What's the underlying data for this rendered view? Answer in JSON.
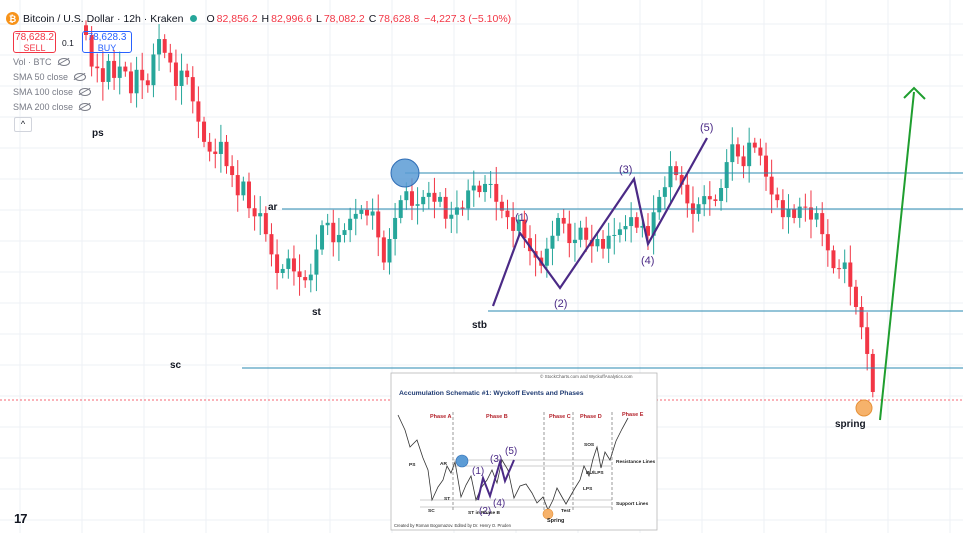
{
  "header": {
    "symbol_title": "Bitcoin / U.S. Dollar · 12h · Kraken",
    "open_label": "O",
    "open": "82,856.2",
    "high_label": "H",
    "high": "82,996.6",
    "low_label": "L",
    "low": "78,082.2",
    "close_label": "C",
    "close": "78,628.8",
    "change": "−4,227.3 (−5.10%)"
  },
  "trade": {
    "sell_price": "78,628.2",
    "sell_label": "SELL",
    "spread": "0.1",
    "buy_price": "78,628.3",
    "buy_label": "BUY"
  },
  "indicators": [
    "Vol · BTC",
    "SMA 50 close",
    "SMA 100 close",
    "SMA 200 close"
  ],
  "collapse_glyph": "^",
  "logo_text": "17",
  "icons": {
    "btc": "bitcoin-icon",
    "status": "market-status-dot",
    "eye": "eye-off-icon"
  },
  "colors": {
    "bull": "#26a69a",
    "bear": "#f23645",
    "level_lines": "#2a8ab0",
    "wyckoff_path": "#4b2a86",
    "projection": "#1f9e2f",
    "ar_circle": "#5b9bd5",
    "spring_circle": "#f6b26b"
  },
  "chart_data": {
    "type": "candlestick",
    "title": "Bitcoin / U.S. Dollar · 12h · Kraken",
    "series_trend": [
      100.0,
      96.1,
      95.9,
      94.2,
      96.8,
      94.7,
      96.1,
      95.5,
      92.8,
      95.7,
      94.4,
      93.8,
      97.6,
      99.5,
      97.8,
      96.6,
      93.7,
      95.6,
      94.8,
      91.8,
      89.3,
      86.8,
      85.6,
      85.3,
      86.8,
      83.8,
      82.7,
      80.2,
      81.9,
      78.6,
      77.6,
      78.0,
      75.4,
      72.9,
      70.6,
      71.1,
      72.4,
      70.8,
      70.1,
      69.7,
      70.4,
      73.5,
      76.5,
      76.8,
      74.4,
      75.3,
      75.9,
      77.3,
      77.9,
      78.4,
      77.7,
      78.2,
      75.0,
      71.9,
      74.8,
      77.4,
      79.6,
      80.7,
      78.9,
      79.1,
      80.0,
      80.5,
      79.4,
      80.0,
      77.3,
      77.8,
      78.7,
      78.6,
      80.8,
      81.4,
      80.6,
      81.6,
      81.6,
      79.4,
      78.3,
      77.5,
      75.8,
      77.2,
      74.9,
      73.3,
      72.5,
      71.5,
      73.6,
      75.2,
      77.4,
      76.7,
      74.3,
      74.7,
      76.2,
      74.7,
      73.9,
      74.8,
      73.6,
      75.2,
      75.3,
      76.0,
      76.4,
      77.5,
      76.2,
      76.4,
      75.2,
      78.1,
      80.0,
      81.2,
      83.8,
      82.7,
      81.5,
      79.2,
      77.9,
      79.1,
      80.1,
      79.7,
      79.5,
      81.1,
      84.3,
      86.5,
      85.0,
      83.8,
      86.7,
      86.1,
      85.1,
      82.5,
      80.3,
      79.6,
      77.5,
      78.5,
      77.4,
      78.8,
      78.7,
      77.2,
      78.0,
      75.4,
      73.4,
      71.2,
      71.1,
      71.9,
      68.9,
      66.4,
      63.9,
      60.6,
      55.9
    ],
    "note": "trend values are relative (first candle = 100); the screenshot shows no price axis",
    "last": {
      "open": 82856.2,
      "high": 82996.6,
      "low": 78082.2,
      "close": 78628.8
    },
    "wyckoff_labels": [
      "ps",
      "ar",
      "st",
      "sc",
      "stb",
      "spring"
    ],
    "wave_labels": [
      "(1)",
      "(2)",
      "(3)",
      "(4)",
      "(5)"
    ],
    "levels": [
      "ar high",
      "ar",
      "stb",
      "sc"
    ],
    "inset": {
      "title": "Accumulation Schematic #1: Wyckoff Events and Phases",
      "credit_top": "© StockCharts.com and WyckoffAnalytics.com",
      "credit_bottom": "Created by Roman Bogomazov. Edited by Dr. Henry O. Pruden",
      "phases": [
        "Phase A",
        "Phase B",
        "Phase C",
        "Phase D",
        "Phase E"
      ],
      "events": [
        "PS",
        "AR",
        "SC",
        "ST",
        "ST in Phase B",
        "Test",
        "SOS",
        "BU/LPS",
        "LPS"
      ],
      "side_labels": [
        "Resistance Lines",
        "Support Lines"
      ],
      "spring_label": "Spring",
      "wave_labels": [
        "(1)",
        "(2)",
        "(3)",
        "(4)",
        "(5)"
      ]
    }
  }
}
